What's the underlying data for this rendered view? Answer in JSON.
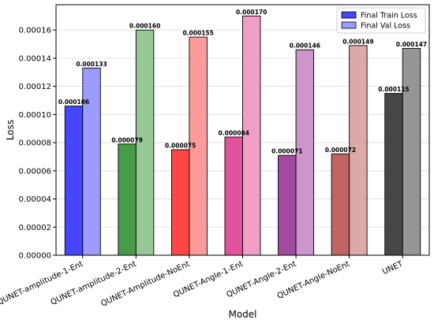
{
  "chart_data": {
    "type": "bar",
    "title": "",
    "xlabel": "Model",
    "ylabel": "Loss",
    "categories": [
      "QUNET-amplitude-1-Ent",
      "QUNET-amplitude-2-Ent",
      "QUNET-Amplitude-NoEnt",
      "QUNET-Angle-1-Ent",
      "QUNET-Angle-2-Ent",
      "QUNET-Angle-NoEnt",
      "UNET"
    ],
    "series": [
      {
        "name": "Final Train Loss",
        "values": [
          0.000106,
          7.9e-05,
          7.5e-05,
          8.4e-05,
          7.1e-05,
          7.2e-05,
          0.000115
        ],
        "labels": [
          "0.000106",
          "0.000079",
          "0.000075",
          "0.000084",
          "0.000071",
          "0.000072",
          "0.000115"
        ],
        "colors": [
          "#4646ff",
          "#489b48",
          "#ff4646",
          "#e0529b",
          "#a24aa0",
          "#c06464",
          "#464646"
        ]
      },
      {
        "name": "Final Val Loss",
        "values": [
          0.000133,
          0.00016,
          0.000155,
          0.00017,
          0.000146,
          0.000149,
          0.000147
        ],
        "labels": [
          "0.000133",
          "0.000160",
          "0.000155",
          "0.000170",
          "0.000146",
          "0.000149",
          "0.000147"
        ],
        "colors": [
          "#9c9cff",
          "#96c896",
          "#ff9a9a",
          "#f0a0c8",
          "#cc96cc",
          "#dca8a8",
          "#969696"
        ]
      }
    ],
    "yticks": [
      "0.00000",
      "0.00002",
      "0.00004",
      "0.00006",
      "0.00008",
      "0.00010",
      "0.00012",
      "0.00014",
      "0.00016"
    ],
    "ylim": [
      0,
      0.000178
    ],
    "grid": true,
    "legend_position": "top-right",
    "legend_colors": [
      "#4646ff",
      "#9c9cff"
    ]
  }
}
